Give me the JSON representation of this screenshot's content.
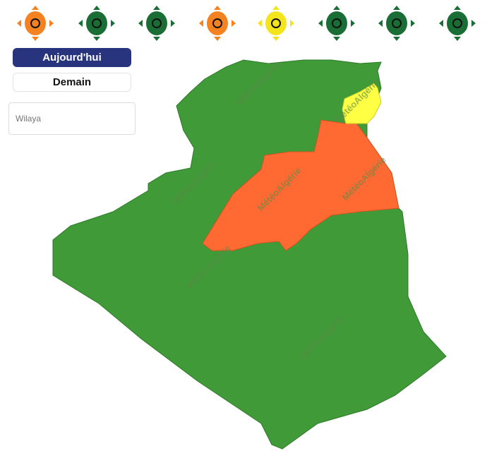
{
  "alert_icons": [
    {
      "name": "all-alerts-icon",
      "color": "#f58220"
    },
    {
      "name": "heat-wave-icon",
      "color": "#1a6e35"
    },
    {
      "name": "wind-icon",
      "color": "#1a6e35"
    },
    {
      "name": "rain-icon",
      "color": "#f58220"
    },
    {
      "name": "thunderstorm-icon",
      "color": "#f4e41c"
    },
    {
      "name": "snow-icon",
      "color": "#1a6e35"
    },
    {
      "name": "sandstorm-icon",
      "color": "#1a6e35"
    },
    {
      "name": "cold-wave-icon",
      "color": "#1a6e35"
    }
  ],
  "day_buttons": {
    "today": "Aujourd'hui",
    "tomorrow": "Demain"
  },
  "wilaya_select": {
    "placeholder": "Wilaya"
  },
  "map": {
    "watermark": "MétéoAlgérie",
    "colors": {
      "green": "#3f9a37",
      "orange": "#ff6a32",
      "yellow": "#ffff44"
    }
  }
}
